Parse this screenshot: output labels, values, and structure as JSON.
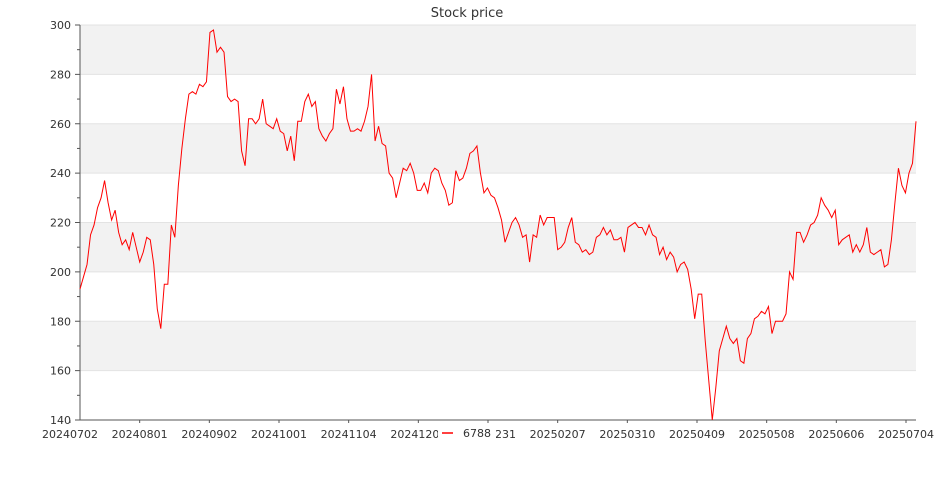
{
  "chart_data": {
    "type": "line",
    "title": "Stock price",
    "xlabel": "",
    "ylabel": "",
    "ylim": [
      140,
      300
    ],
    "yticks": [
      140,
      160,
      180,
      200,
      220,
      240,
      260,
      280,
      300
    ],
    "xtick_labels": [
      "20240702",
      "20240801",
      "20240902",
      "20241001",
      "20241104",
      "20241203",
      "20241231",
      "20250207",
      "20250310",
      "20250409",
      "20250508",
      "20250606",
      "20250704"
    ],
    "grid": "horizontal bands",
    "legend_position": "bottom-center",
    "series": [
      {
        "name": "6788",
        "color": "#ff0000",
        "values": [
          193,
          198,
          203,
          215,
          219,
          226,
          230,
          237,
          228,
          221,
          225,
          216,
          211,
          213,
          209,
          216,
          210,
          204,
          208,
          214,
          213,
          203,
          185,
          177,
          195,
          195,
          219,
          214,
          235,
          250,
          262,
          272,
          273,
          272,
          276,
          275,
          277,
          297,
          298,
          289,
          291,
          289,
          271,
          269,
          270,
          269,
          249,
          243,
          262,
          262,
          260,
          262,
          270,
          260,
          259,
          258,
          262,
          257,
          256,
          249,
          255,
          245,
          261,
          261,
          269,
          272,
          267,
          269,
          258,
          255,
          253,
          256,
          258,
          274,
          268,
          275,
          262,
          257,
          257,
          258,
          257,
          261,
          267,
          280,
          253,
          259,
          252,
          251,
          240,
          238,
          230,
          236,
          242,
          241,
          244,
          240,
          233,
          233,
          236,
          232,
          240,
          242,
          241,
          236,
          233,
          227,
          228,
          241,
          237,
          238,
          242,
          248,
          249,
          251,
          240,
          232,
          234,
          231,
          230,
          226,
          221,
          212,
          216,
          220,
          222,
          219,
          214,
          215,
          204,
          215,
          214,
          223,
          219,
          222,
          222,
          222,
          209,
          210,
          212,
          218,
          222,
          212,
          211,
          208,
          209,
          207,
          208,
          214,
          215,
          218,
          215,
          217,
          213,
          213,
          214,
          208,
          218,
          219,
          220,
          218,
          218,
          215,
          219,
          215,
          214,
          207,
          210,
          205,
          208,
          206,
          200,
          203,
          204,
          201,
          193,
          181,
          191,
          191,
          172,
          156,
          140,
          153,
          168,
          173,
          178,
          173,
          171,
          173,
          164,
          163,
          173,
          175,
          181,
          182,
          184,
          183,
          186,
          175,
          180,
          180,
          180,
          183,
          200,
          197,
          216,
          216,
          212,
          215,
          219,
          220,
          223,
          230,
          227,
          225,
          222,
          225,
          211,
          213,
          214,
          215,
          208,
          211,
          208,
          211,
          218,
          208,
          207,
          208,
          209,
          202,
          203,
          213,
          228,
          242,
          235,
          232,
          240,
          244,
          261
        ]
      }
    ]
  }
}
